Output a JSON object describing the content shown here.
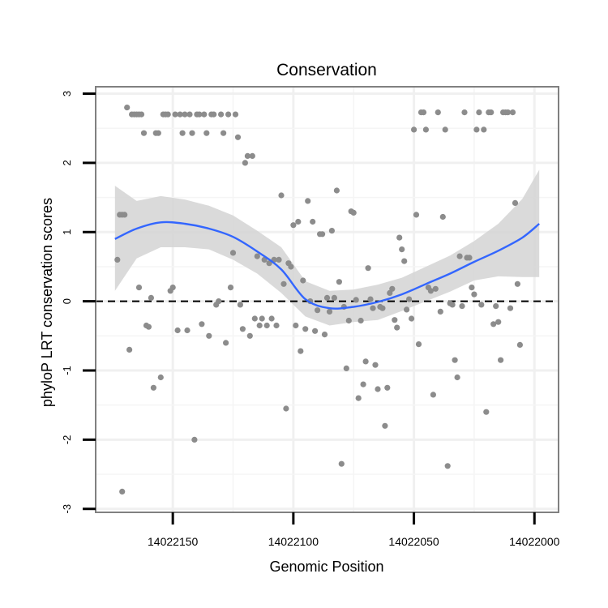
{
  "chart_data": {
    "type": "scatter",
    "title": "Conservation",
    "xlabel": "Genomic Position",
    "ylabel": "phyloP LRT conservation scores",
    "x_reversed": true,
    "xlim": [
      14022182,
      14021990
    ],
    "ylim": [
      -3.05,
      3.1
    ],
    "x_ticks": [
      14022150,
      14022100,
      14022050,
      14022000
    ],
    "y_ticks": [
      -3,
      -2,
      -1,
      0,
      1,
      2,
      3
    ],
    "grid": true,
    "reference_line": {
      "y": 0,
      "style": "dashed"
    },
    "points": {
      "name": "",
      "color": "#8c8c8c",
      "data": [
        [
          14022173,
          0.6
        ],
        [
          14022172,
          1.25
        ],
        [
          14022171,
          -2.75
        ],
        [
          14022171,
          1.25
        ],
        [
          14022170,
          1.25
        ],
        [
          14022169,
          2.8
        ],
        [
          14022168,
          -0.7
        ],
        [
          14022167,
          2.7
        ],
        [
          14022166,
          2.7
        ],
        [
          14022165,
          2.7
        ],
        [
          14022164,
          0.2
        ],
        [
          14022164,
          2.7
        ],
        [
          14022163,
          2.7
        ],
        [
          14022162,
          2.43
        ],
        [
          14022161,
          -0.35
        ],
        [
          14022160,
          -0.37
        ],
        [
          14022159,
          0.05
        ],
        [
          14022158,
          -1.25
        ],
        [
          14022157,
          2.43
        ],
        [
          14022156,
          2.43
        ],
        [
          14022155,
          -1.1
        ],
        [
          14022154,
          2.7
        ],
        [
          14022153,
          2.7
        ],
        [
          14022152,
          2.7
        ],
        [
          14022151,
          0.15
        ],
        [
          14022150,
          0.2
        ],
        [
          14022149,
          2.7
        ],
        [
          14022148,
          -0.42
        ],
        [
          14022147,
          2.7
        ],
        [
          14022146,
          2.43
        ],
        [
          14022145,
          2.7
        ],
        [
          14022144,
          -0.42
        ],
        [
          14022143,
          2.7
        ],
        [
          14022142,
          2.43
        ],
        [
          14022141,
          -2.0
        ],
        [
          14022140,
          2.7
        ],
        [
          14022139,
          2.7
        ],
        [
          14022138,
          -0.33
        ],
        [
          14022137,
          2.7
        ],
        [
          14022136,
          2.43
        ],
        [
          14022135,
          -0.5
        ],
        [
          14022134,
          2.7
        ],
        [
          14022133,
          2.7
        ],
        [
          14022132,
          -0.05
        ],
        [
          14022131,
          0.0
        ],
        [
          14022130,
          2.7
        ],
        [
          14022129,
          2.43
        ],
        [
          14022128,
          -0.6
        ],
        [
          14022127,
          2.7
        ],
        [
          14022126,
          0.2
        ],
        [
          14022125,
          0.7
        ],
        [
          14022124,
          2.7
        ],
        [
          14022123,
          2.37
        ],
        [
          14022122,
          -0.05
        ],
        [
          14022121,
          -0.4
        ],
        [
          14022120,
          2.0
        ],
        [
          14022119,
          2.1
        ],
        [
          14022118,
          -0.5
        ],
        [
          14022117,
          2.1
        ],
        [
          14022116,
          -0.25
        ],
        [
          14022115,
          0.65
        ],
        [
          14022114,
          -0.35
        ],
        [
          14022113,
          -0.25
        ],
        [
          14022112,
          0.6
        ],
        [
          14022111,
          -0.35
        ],
        [
          14022110,
          0.55
        ],
        [
          14022109,
          -0.25
        ],
        [
          14022108,
          0.6
        ],
        [
          14022107,
          -0.35
        ],
        [
          14022106,
          0.6
        ],
        [
          14022105,
          1.53
        ],
        [
          14022104,
          0.25
        ],
        [
          14022103,
          -1.55
        ],
        [
          14022102,
          0.55
        ],
        [
          14022101,
          0.5
        ],
        [
          14022100,
          1.1
        ],
        [
          14022099,
          -0.35
        ],
        [
          14022098,
          1.15
        ],
        [
          14022097,
          -0.72
        ],
        [
          14022096,
          0.3
        ],
        [
          14022095,
          -0.4
        ],
        [
          14022094,
          1.45
        ],
        [
          14022093,
          0.0
        ],
        [
          14022092,
          1.15
        ],
        [
          14022091,
          -0.43
        ],
        [
          14022090,
          -0.13
        ],
        [
          14022089,
          0.97
        ],
        [
          14022088,
          0.97
        ],
        [
          14022087,
          -0.48
        ],
        [
          14022086,
          0.05
        ],
        [
          14022085,
          -0.15
        ],
        [
          14022084,
          1.02
        ],
        [
          14022083,
          0.05
        ],
        [
          14022082,
          1.6
        ],
        [
          14022081,
          0.28
        ],
        [
          14022080,
          -2.35
        ],
        [
          14022079,
          -0.08
        ],
        [
          14022078,
          -0.97
        ],
        [
          14022077,
          -0.28
        ],
        [
          14022076,
          1.3
        ],
        [
          14022075,
          1.28
        ],
        [
          14022074,
          0.02
        ],
        [
          14022073,
          -1.4
        ],
        [
          14022072,
          -0.28
        ],
        [
          14022071,
          -1.2
        ],
        [
          14022070,
          -0.87
        ],
        [
          14022069,
          0.48
        ],
        [
          14022068,
          0.03
        ],
        [
          14022067,
          -0.1
        ],
        [
          14022066,
          -0.92
        ],
        [
          14022065,
          -1.27
        ],
        [
          14022064,
          -0.08
        ],
        [
          14022063,
          -0.1
        ],
        [
          14022062,
          -1.8
        ],
        [
          14022061,
          -1.25
        ],
        [
          14022060,
          0.12
        ],
        [
          14022059,
          0.18
        ],
        [
          14022058,
          -0.27
        ],
        [
          14022057,
          -0.38
        ],
        [
          14022056,
          0.92
        ],
        [
          14022055,
          0.75
        ],
        [
          14022054,
          0.58
        ],
        [
          14022053,
          -0.12
        ],
        [
          14022052,
          0.03
        ],
        [
          14022051,
          -0.25
        ],
        [
          14022050,
          2.48
        ],
        [
          14022049,
          1.25
        ],
        [
          14022048,
          -0.62
        ],
        [
          14022047,
          2.73
        ],
        [
          14022046,
          2.73
        ],
        [
          14022045,
          2.48
        ],
        [
          14022044,
          0.2
        ],
        [
          14022043,
          0.15
        ],
        [
          14022042,
          -1.35
        ],
        [
          14022041,
          0.18
        ],
        [
          14022040,
          2.73
        ],
        [
          14022039,
          -0.15
        ],
        [
          14022038,
          1.22
        ],
        [
          14022037,
          2.48
        ],
        [
          14022036,
          -2.38
        ],
        [
          14022035,
          -0.03
        ],
        [
          14022034,
          -0.05
        ],
        [
          14022033,
          -0.85
        ],
        [
          14022032,
          -1.1
        ],
        [
          14022031,
          0.65
        ],
        [
          14022030,
          -0.07
        ],
        [
          14022029,
          2.73
        ],
        [
          14022028,
          0.63
        ],
        [
          14022027,
          0.63
        ],
        [
          14022026,
          0.2
        ],
        [
          14022025,
          0.1
        ],
        [
          14022024,
          2.48
        ],
        [
          14022023,
          2.73
        ],
        [
          14022022,
          -0.05
        ],
        [
          14022021,
          2.48
        ],
        [
          14022020,
          -1.6
        ],
        [
          14022019,
          2.73
        ],
        [
          14022018,
          2.73
        ],
        [
          14022017,
          -0.33
        ],
        [
          14022016,
          -0.07
        ],
        [
          14022015,
          -0.3
        ],
        [
          14022014,
          -0.85
        ],
        [
          14022013,
          2.73
        ],
        [
          14022012,
          2.73
        ],
        [
          14022011,
          2.73
        ],
        [
          14022010,
          -0.1
        ],
        [
          14022009,
          2.73
        ],
        [
          14022008,
          1.42
        ],
        [
          14022007,
          0.25
        ],
        [
          14022006,
          -0.63
        ]
      ]
    },
    "smooth": {
      "name": "",
      "color": "#3366ff",
      "band_color": "#d3d3d3",
      "x": [
        14022174,
        14022165,
        14022155,
        14022145,
        14022135,
        14022125,
        14022115,
        14022105,
        14022095,
        14022085,
        14022075,
        14022065,
        14022055,
        14022045,
        14022035,
        14022025,
        14022015,
        14022005,
        14021998
      ],
      "y": [
        0.9,
        1.05,
        1.14,
        1.12,
        1.05,
        0.93,
        0.72,
        0.46,
        0.03,
        -0.1,
        -0.08,
        -0.01,
        0.1,
        0.25,
        0.4,
        0.57,
        0.73,
        0.92,
        1.12
      ],
      "lower": [
        0.15,
        0.62,
        0.78,
        0.78,
        0.75,
        0.6,
        0.4,
        0.12,
        -0.22,
        -0.35,
        -0.3,
        -0.27,
        -0.14,
        0.0,
        0.14,
        0.3,
        0.36,
        0.35,
        0.35
      ],
      "upper": [
        1.67,
        1.45,
        1.52,
        1.47,
        1.38,
        1.24,
        1.02,
        0.78,
        0.29,
        0.15,
        0.17,
        0.24,
        0.34,
        0.5,
        0.66,
        0.87,
        1.12,
        1.48,
        1.9
      ]
    }
  }
}
